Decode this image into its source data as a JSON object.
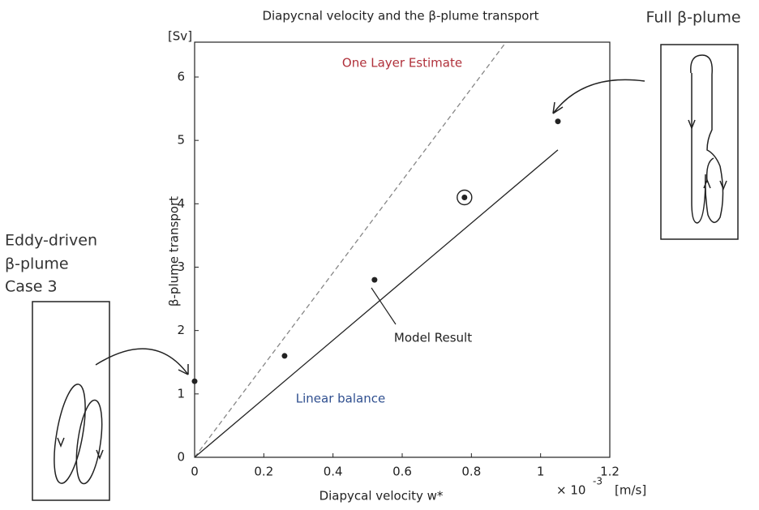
{
  "chart_data": {
    "type": "scatter",
    "title": "Diapycnal velocity and the β-plume transport",
    "x_label": "Diapycal velocity w*",
    "x_multiplier": "× 10",
    "x_exponent": "-3",
    "x_unit": "[m/s]",
    "y_label": "β-plume transport",
    "y_unit": "[Sv]",
    "xlim": [
      0,
      1.2
    ],
    "ylim": [
      0,
      6.55
    ],
    "xticks": [
      0,
      0.2,
      0.4,
      0.6,
      0.8,
      1,
      1.2
    ],
    "yticks": [
      0,
      1,
      2,
      3,
      4,
      5,
      6
    ],
    "series": [
      {
        "x": [
          0,
          0.26,
          0.52,
          0.78,
          1.05
        ],
        "values": [
          1.2,
          1.6,
          2.8,
          4.1,
          5.3
        ],
        "color": "#222",
        "circled": [
          false,
          false,
          false,
          true,
          false
        ]
      }
    ],
    "lines": [
      {
        "label": "One Layer Estimate",
        "x": [
          0,
          0.9
        ],
        "values": [
          0,
          6.55
        ],
        "color": "#888",
        "dashed": true,
        "label_color": "#b0303a"
      },
      {
        "label": "Model Result",
        "x": [
          0,
          1.05
        ],
        "values": [
          0,
          4.85
        ],
        "color": "#222",
        "dashed": false,
        "label_color": "#222"
      }
    ],
    "annotations": [
      {
        "text": "Linear balance",
        "color": "#2f4f8f"
      },
      {
        "text": "Full β-plume",
        "color": "#333"
      },
      {
        "text": "Eddy-driven",
        "color": "#333"
      },
      {
        "text": "β-plume",
        "color": "#333"
      },
      {
        "text": "Case 3",
        "color": "#333"
      }
    ]
  }
}
